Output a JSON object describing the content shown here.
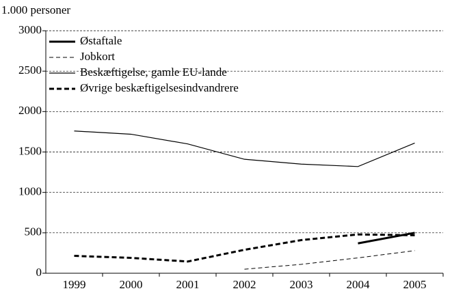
{
  "chart_data": {
    "type": "line",
    "y_axis_label": "1.000 personer",
    "categories": [
      "1999",
      "2000",
      "2001",
      "2002",
      "2003",
      "2004",
      "2005"
    ],
    "series": [
      {
        "name": "Østaftale",
        "color": "#000000",
        "line_width": 3,
        "dashed": false,
        "values": [
          null,
          null,
          null,
          null,
          null,
          370,
          500
        ]
      },
      {
        "name": "Jobkort",
        "color": "#000000",
        "line_width": 1,
        "dashed": true,
        "values": [
          null,
          null,
          null,
          50,
          110,
          190,
          280
        ]
      },
      {
        "name": "Beskæftigelse, gamle EU-lande",
        "color": "#000000",
        "line_width": 1.2,
        "dashed": false,
        "values": [
          1760,
          1720,
          1600,
          1410,
          1350,
          1320,
          1610
        ]
      },
      {
        "name": "Øvrige beskæftigelsesindvandrere",
        "color": "#000000",
        "line_width": 3,
        "dashed": true,
        "values": [
          215,
          190,
          145,
          290,
          410,
          480,
          470
        ]
      }
    ],
    "ylim": [
      0,
      3000
    ],
    "yticks": [
      0,
      500,
      1000,
      1500,
      2000,
      2500,
      3000
    ],
    "grid": true,
    "legend": "upper left"
  }
}
